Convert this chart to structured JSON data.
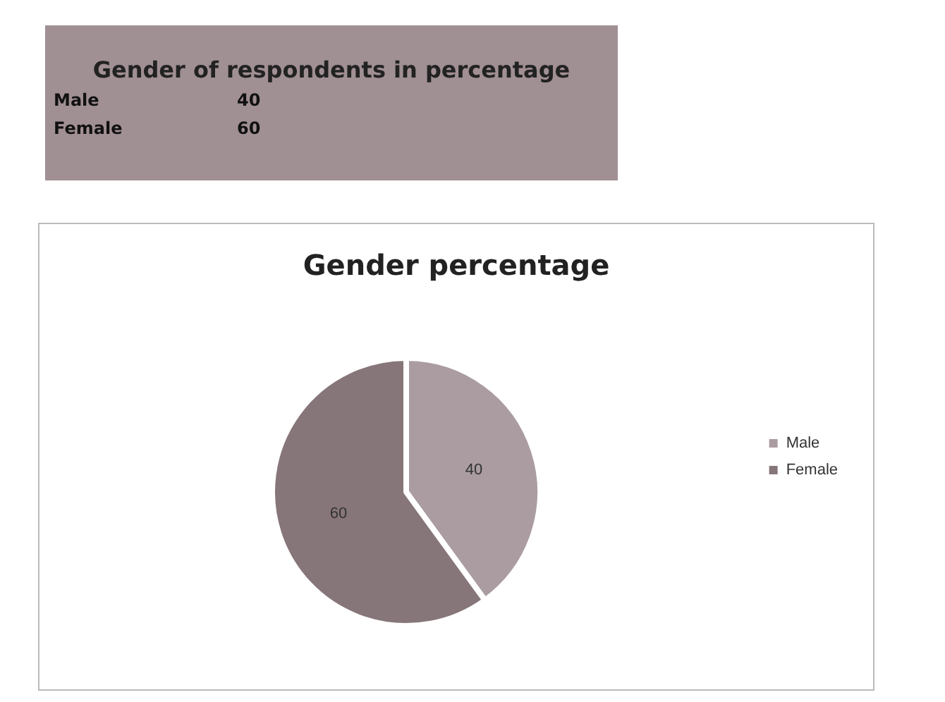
{
  "chart_data": {
    "type": "pie",
    "title": "Gender percentage",
    "categories": [
      "Male",
      "Female"
    ],
    "values": [
      40,
      60
    ],
    "colors": [
      "#aa9ca0",
      "#877679"
    ],
    "data_labels": true,
    "legend": "right",
    "annotations": [
      "Gender of respondents in percentage",
      "Male",
      "40",
      "Female",
      "60"
    ]
  }
}
